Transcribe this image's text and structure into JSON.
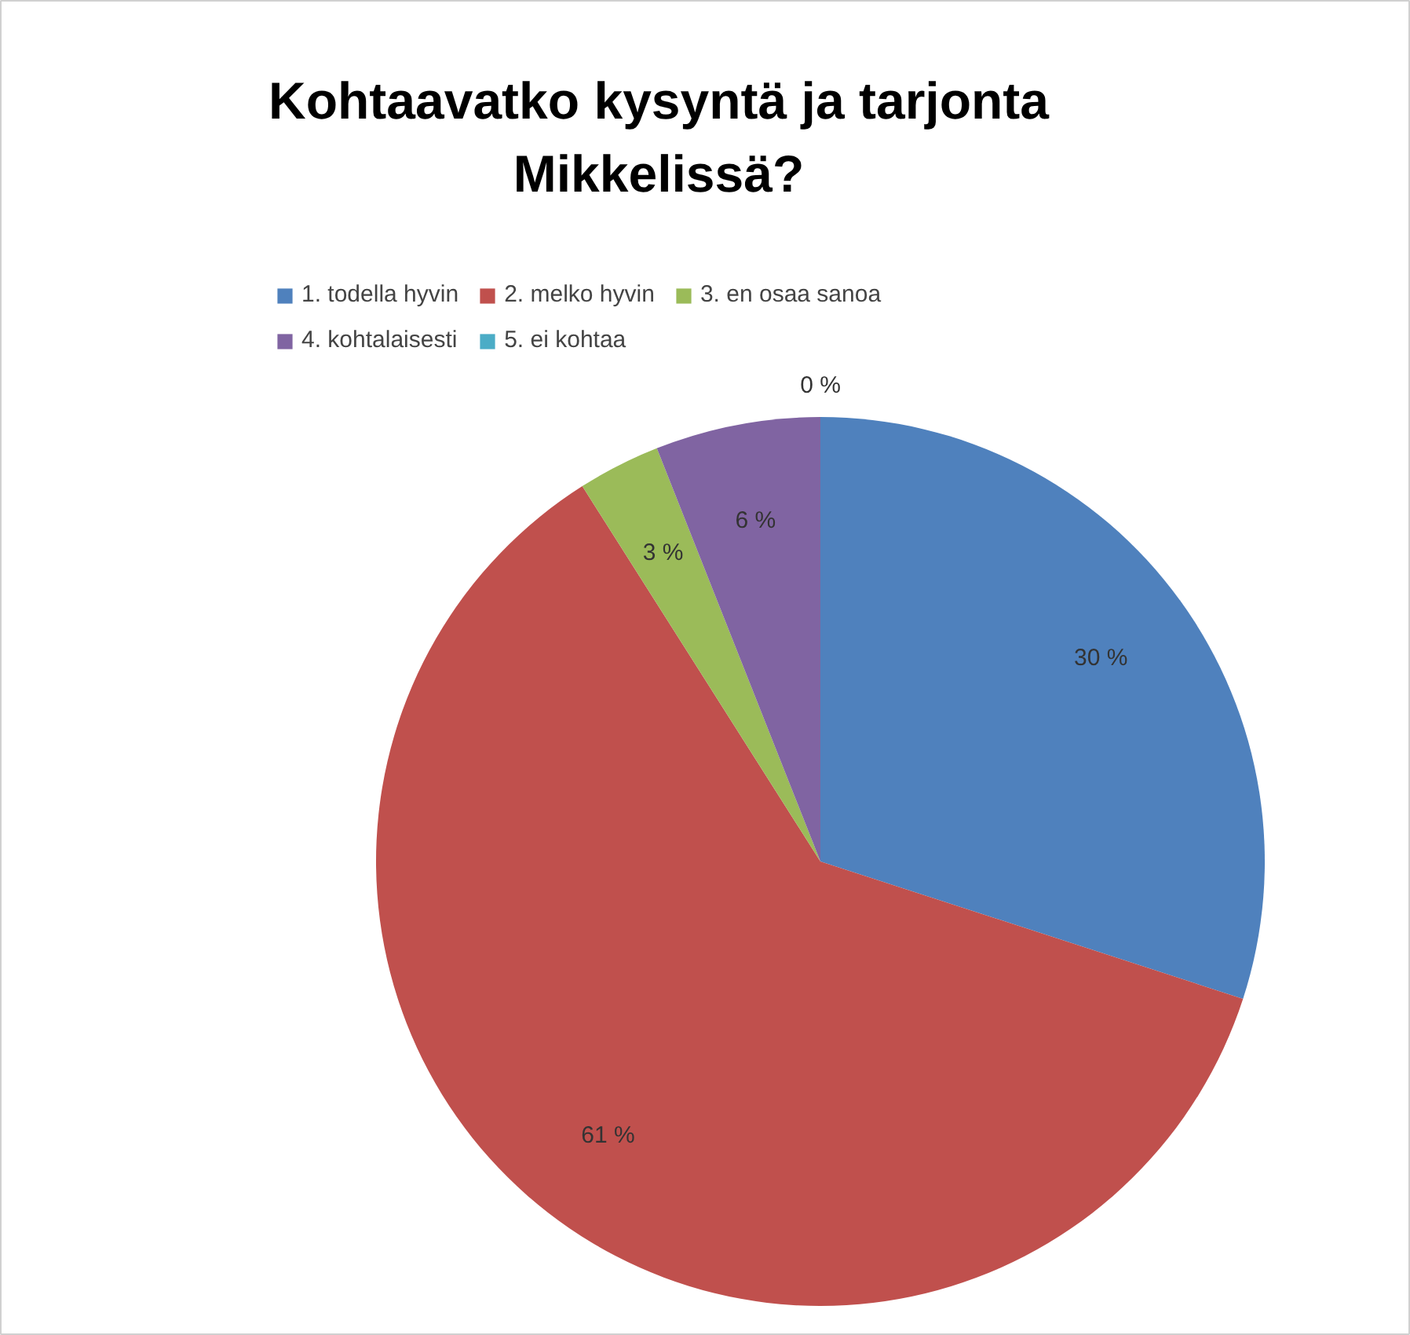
{
  "chart_data": {
    "type": "pie",
    "title": "Kohtaavatko kysyntä ja tarjonta\nMikkelissä?",
    "categories": [
      "1. todella hyvin",
      "2. melko hyvin",
      "3. en osaa sanoa",
      "4. kohtalaisesti",
      "5. ei kohtaa"
    ],
    "values": [
      30,
      61,
      3,
      6,
      0
    ],
    "colors": [
      "#4f81bd",
      "#c0504d",
      "#9bbb59",
      "#8064a2",
      "#4bacc6"
    ],
    "value_labels": [
      "30 %",
      "61 %",
      "3 %",
      "6 %",
      "0 %"
    ],
    "legend": "top"
  }
}
